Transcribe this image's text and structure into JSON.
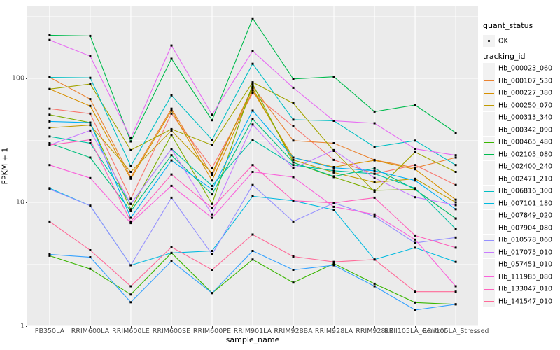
{
  "figure": {
    "panel_bg": "#EBEBEB",
    "grid_color": "#FFFFFF",
    "tick_text_color": "#4D4D4D",
    "point_color": "#000000"
  },
  "axes": {
    "x": {
      "title": "sample_name",
      "ticks": [
        "PB350LA",
        "RRIM600LA",
        "RRIM600LE",
        "RRIM600SE",
        "RRIM600PE",
        "RRIM901LA",
        "RRIM928BA",
        "RRIM928LA",
        "RRIM928LE",
        "RRII105LA_Control",
        "RRII105LA_Stressed"
      ]
    },
    "y": {
      "title": "FPKM + 1",
      "ticks": [
        "1",
        "10",
        "100"
      ],
      "scale": "log10"
    }
  },
  "legend": {
    "quant_status": {
      "title": "quant_status",
      "items": [
        {
          "label": "OK",
          "key": "black-point"
        }
      ]
    },
    "tracking_id": {
      "title": "tracking_id"
    }
  },
  "chart_data": {
    "type": "line",
    "title": "",
    "xlabel": "sample_name",
    "ylabel": "FPKM + 1",
    "y_scale": "log10",
    "ylim": [
      1,
      380
    ],
    "y_major_gridlines": [
      1,
      10,
      100
    ],
    "y_minor_gridlines": [
      3.162,
      31.62,
      316.2
    ],
    "grid": true,
    "legend_position": "right",
    "point_marker": "small black point (quant_status OK)",
    "categories": [
      "PB350LA",
      "RRIM600LA",
      "RRIM600LE",
      "RRIM600SE",
      "RRIM600PE",
      "RRIM901LA",
      "RRIM928BA",
      "RRIM928LA",
      "RRIM928LE",
      "RRII105LA_Control",
      "RRII105LA_Stressed"
    ],
    "series": [
      {
        "name": "Hb_000023_060",
        "color": "#F8766D",
        "values": [
          57,
          52,
          10.7,
          52,
          19,
          76,
          41,
          22,
          17,
          20,
          13.8
        ]
      },
      {
        "name": "Hb_000107_530",
        "color": "#EA8331",
        "values": [
          102,
          68,
          16,
          57,
          16.5,
          86,
          31.5,
          30,
          22,
          19,
          23
        ]
      },
      {
        "name": "Hb_000227_380",
        "color": "#D89000",
        "values": [
          82,
          60,
          15.5,
          55,
          15,
          80,
          23,
          19.3,
          21.8,
          18.5,
          10.5
        ]
      },
      {
        "name": "Hb_000250_070",
        "color": "#C09B00",
        "values": [
          40,
          42,
          17.6,
          38,
          17.2,
          83,
          22,
          17.4,
          14.5,
          15.5,
          10
        ]
      },
      {
        "name": "Hb_000313_340",
        "color": "#A3A500",
        "values": [
          82,
          90,
          26.4,
          39,
          29,
          93,
          63,
          26,
          12.2,
          25.4,
          17.6
        ]
      },
      {
        "name": "Hb_000342_090",
        "color": "#7CAE00",
        "values": [
          51,
          44,
          8.8,
          35,
          9.7,
          90,
          21,
          16,
          12.5,
          12.7,
          7.4
        ]
      },
      {
        "name": "Hb_000465_480",
        "color": "#39B600",
        "values": [
          3.7,
          2.9,
          1.8,
          3.9,
          1.85,
          3.45,
          2.25,
          3.2,
          2.2,
          1.55,
          1.5
        ]
      },
      {
        "name": "Hb_002105_080",
        "color": "#00BB4E",
        "values": [
          223,
          220,
          31,
          144,
          46,
          305,
          99,
          103,
          54,
          61,
          36.5
        ]
      },
      {
        "name": "Hb_002400_240",
        "color": "#00BF7D",
        "values": [
          30,
          23,
          8.5,
          24,
          11.6,
          47,
          21,
          16.2,
          18.8,
          12.7,
          7.4
        ]
      },
      {
        "name": "Hb_002471_210",
        "color": "#00C1A3",
        "values": [
          34,
          30,
          9.7,
          27,
          13.6,
          32,
          20,
          18,
          17,
          13,
          6.1
        ]
      },
      {
        "name": "Hb_006816_300",
        "color": "#00BFC4",
        "values": [
          102,
          101,
          19.6,
          73,
          32,
          131,
          46.5,
          45.5,
          28,
          31.5,
          20
        ]
      },
      {
        "name": "Hb_007101_180",
        "color": "#00BAE0",
        "values": [
          13,
          9.4,
          3.1,
          3.9,
          4.05,
          11.2,
          10.3,
          8.7,
          3.45,
          4.3,
          3.3
        ]
      },
      {
        "name": "Hb_007849_020",
        "color": "#00B0F6",
        "values": [
          45,
          44,
          7.5,
          21.8,
          12.7,
          55,
          23,
          19,
          18,
          15,
          8.8
        ]
      },
      {
        "name": "Hb_007904_080",
        "color": "#35A2FF",
        "values": [
          3.8,
          3.6,
          1.56,
          3.35,
          1.85,
          4.05,
          2.85,
          3.1,
          2.1,
          1.35,
          1.5
        ]
      },
      {
        "name": "Hb_010578_060",
        "color": "#9590FF",
        "values": [
          12.8,
          9.4,
          3.1,
          10.9,
          3.8,
          13.8,
          7,
          9.9,
          7.7,
          4.7,
          5.2
        ]
      },
      {
        "name": "Hb_017075_010",
        "color": "#C77CFF",
        "values": [
          29,
          38,
          9.7,
          27,
          8,
          42.5,
          18.8,
          26.4,
          15.7,
          11,
          9.5
        ]
      },
      {
        "name": "Hb_057451_010",
        "color": "#E76BF3",
        "values": [
          204,
          151,
          33,
          184,
          51,
          166,
          84,
          45.5,
          43.5,
          27,
          24
        ]
      },
      {
        "name": "Hb_111985_080",
        "color": "#FA62DB",
        "values": [
          20,
          15.7,
          6.8,
          13.6,
          7.5,
          17.6,
          16,
          9.2,
          8,
          5,
          2.1
        ]
      },
      {
        "name": "Hb_133047_010",
        "color": "#FF62BC",
        "values": [
          29,
          32,
          7,
          16.8,
          9,
          20,
          10.3,
          9.9,
          10.9,
          5.4,
          4.3
        ]
      },
      {
        "name": "Hb_141547_010",
        "color": "#FF6A98",
        "values": [
          7,
          4.1,
          2.1,
          4.35,
          2.85,
          5.5,
          3.65,
          3.3,
          3.45,
          1.9,
          1.9
        ]
      }
    ]
  }
}
